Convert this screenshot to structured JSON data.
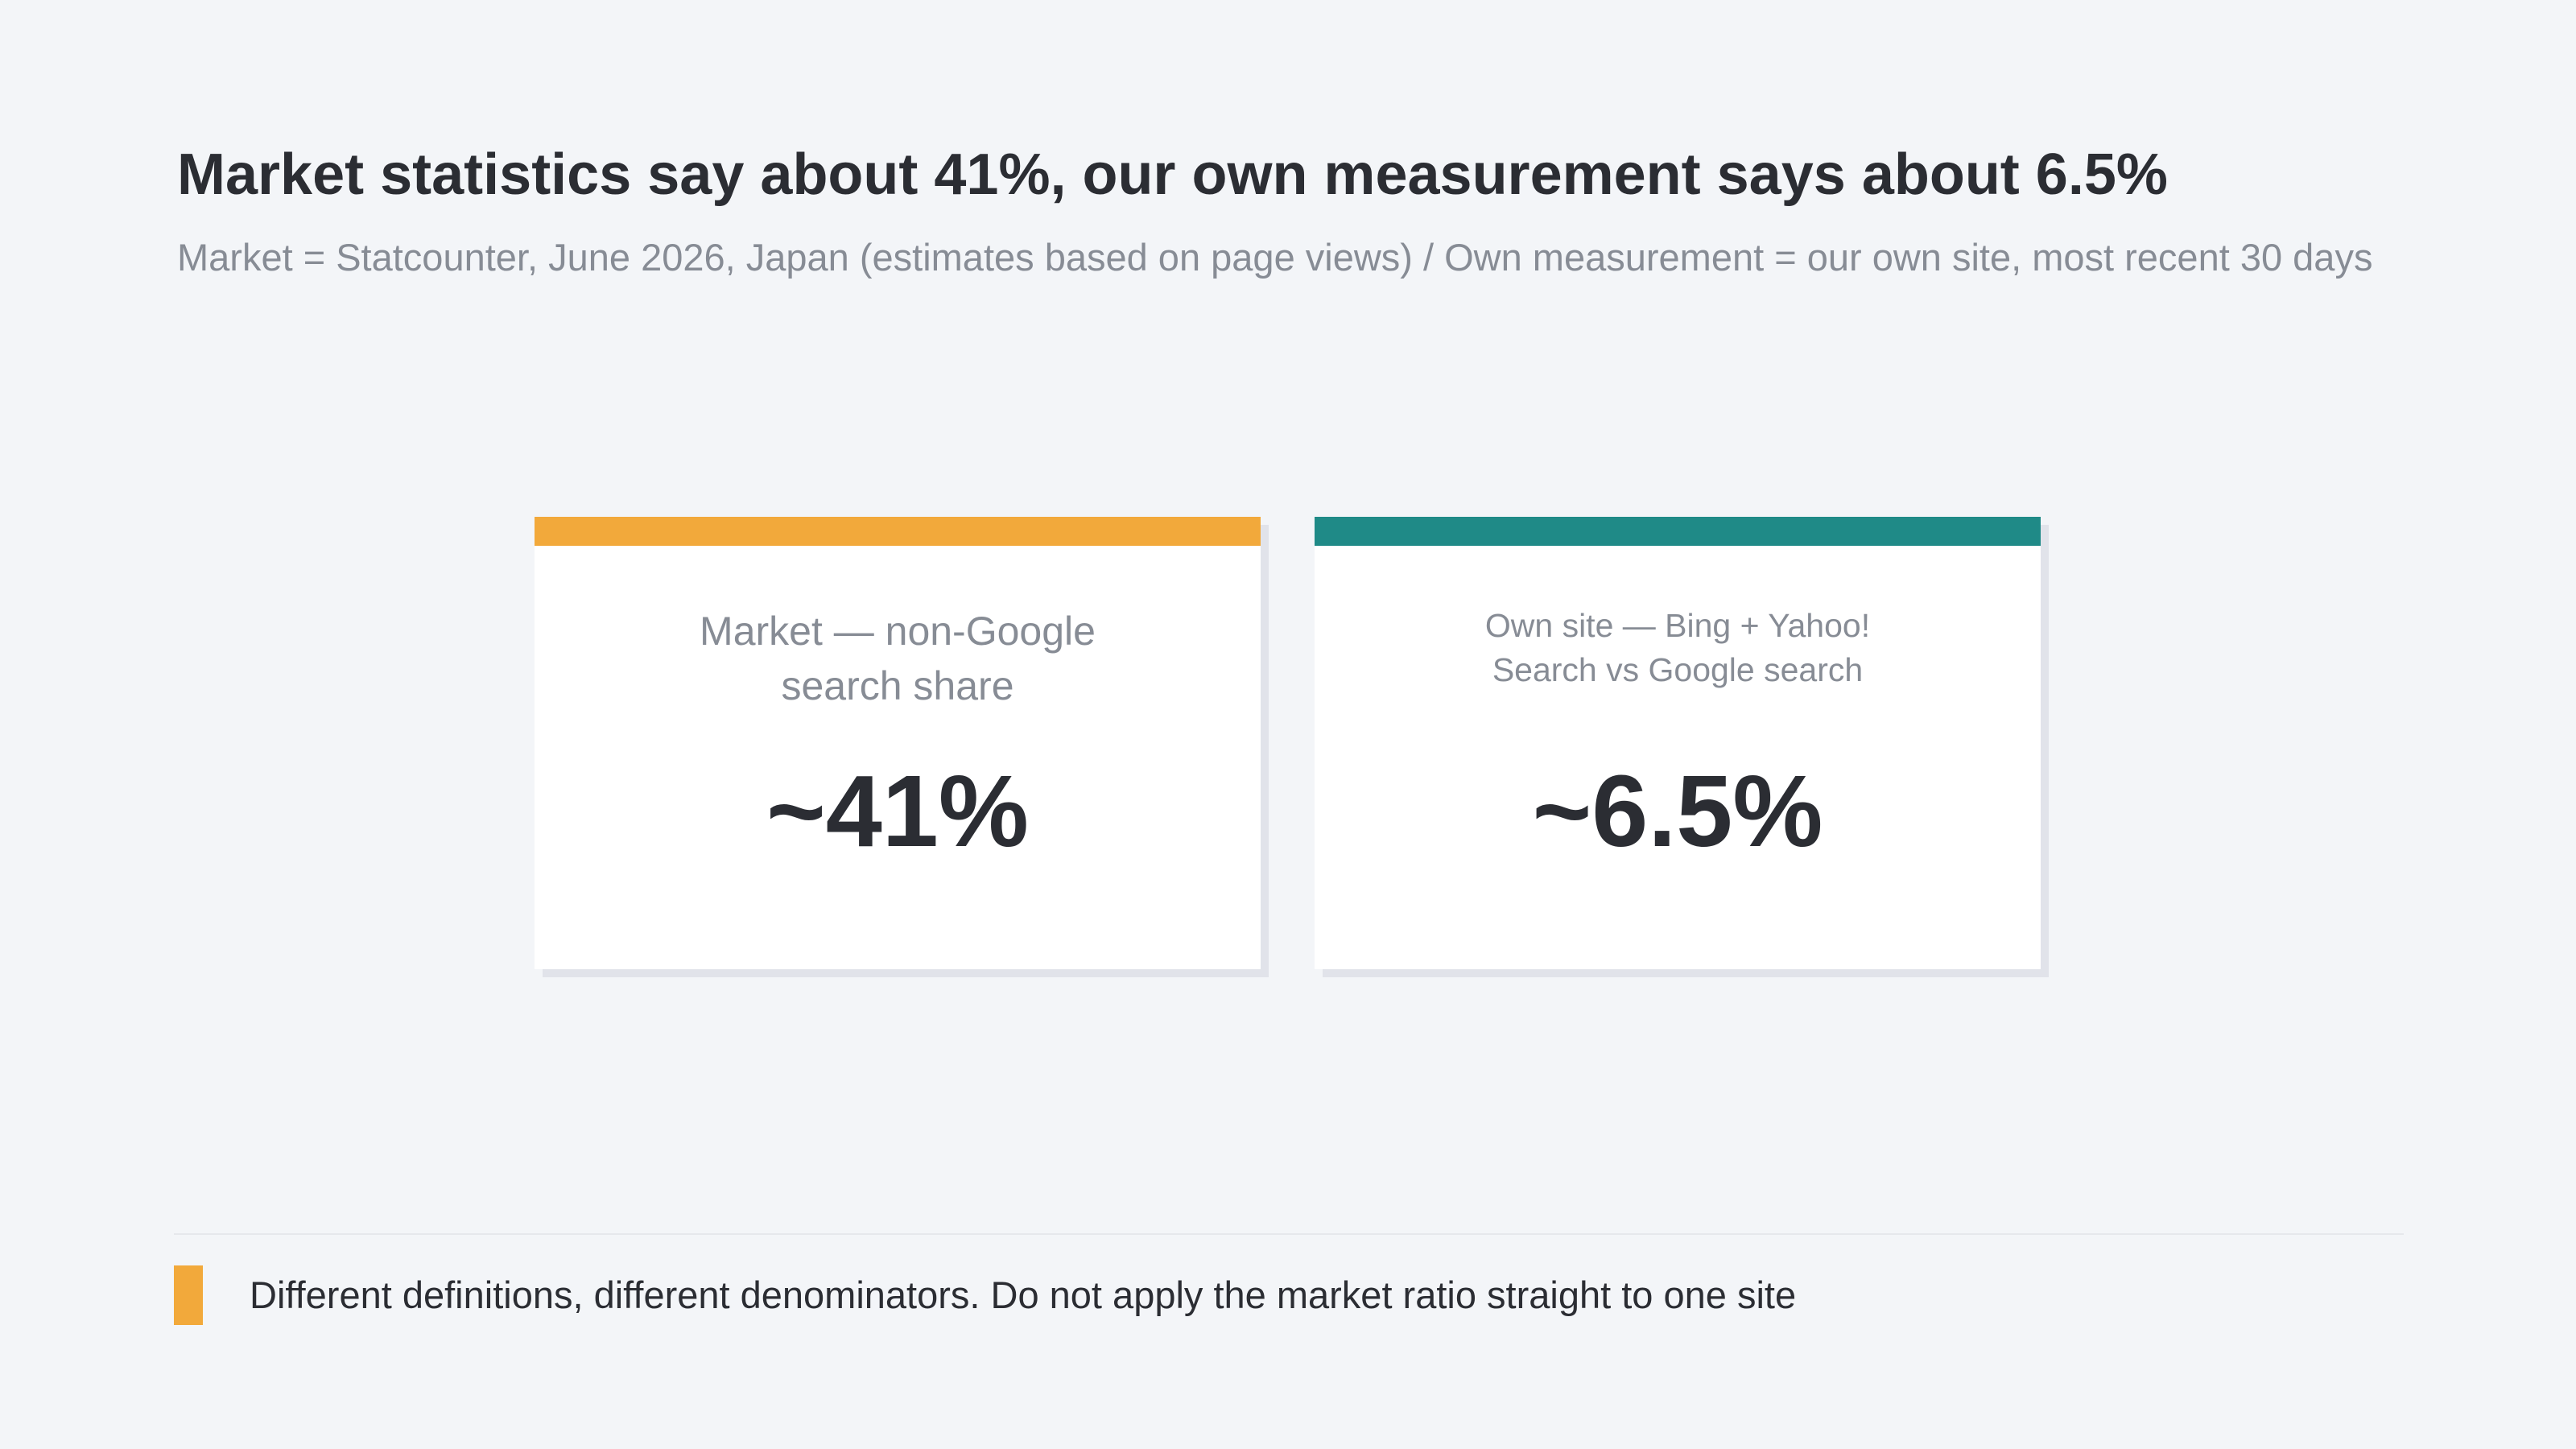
{
  "header": {
    "title": "Market statistics say about 41%, our own measurement says about 6.5%",
    "subtitle": "Market = Statcounter, June 2026, Japan (estimates based on page views) / Own measurement = our own site, most recent 30 days"
  },
  "cards": [
    {
      "label_line1": "Market — non-Google",
      "label_line2": "search share",
      "value": "~41%",
      "accent_color": "#f2a93b"
    },
    {
      "label_line1": "Own site — Bing + Yahoo!",
      "label_line2": "Search vs Google search",
      "value": "~6.5%",
      "accent_color": "#1f8a87"
    }
  ],
  "footer": {
    "note": "Different definitions, different denominators. Do not apply the market ratio straight to one site",
    "marker_color": "#f2a93b"
  }
}
